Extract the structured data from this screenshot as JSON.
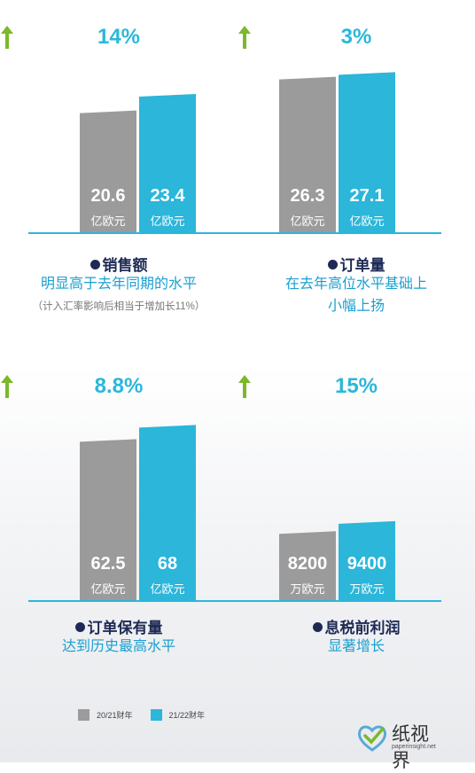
{
  "chart_data": [
    {
      "type": "bar",
      "categories": [
        "20/21财年",
        "21/22财年"
      ],
      "values": [
        20.6,
        23.4
      ],
      "value_labels": [
        "20.6",
        "23.4"
      ],
      "unit": "亿欧元",
      "growth": "14%",
      "metric": "销售额",
      "description": [
        "明显高于去年同期的水平"
      ],
      "note": "（计入汇率影响后相当于增加长11%）",
      "ylim": [
        0,
        30
      ]
    },
    {
      "type": "bar",
      "categories": [
        "20/21财年",
        "21/22财年"
      ],
      "values": [
        26.3,
        27.1
      ],
      "value_labels": [
        "26.3",
        "27.1"
      ],
      "unit": "亿欧元",
      "growth": "3%",
      "metric": "订单量",
      "description": [
        "在去年高位水平基础上",
        "小幅上扬"
      ],
      "ylim": [
        0,
        30
      ]
    },
    {
      "type": "bar",
      "categories": [
        "20/21财年",
        "21/22财年"
      ],
      "values": [
        62.5,
        68
      ],
      "value_labels": [
        "62.5",
        "68"
      ],
      "unit": "亿欧元",
      "growth": "8.8%",
      "metric": "订单保有量",
      "description": [
        "达到历史最高水平"
      ],
      "ylim": [
        0,
        75
      ]
    },
    {
      "type": "bar",
      "categories": [
        "20/21财年",
        "21/22财年"
      ],
      "values": [
        8200,
        9400
      ],
      "value_labels": [
        "8200",
        "9400"
      ],
      "unit": "万欧元",
      "growth": "15%",
      "metric": "息税前利润",
      "description": [
        "显著增长"
      ],
      "ylim": [
        0,
        23000
      ]
    }
  ],
  "legend": [
    {
      "label": "20/21财年",
      "color": "#9b9b9b"
    },
    {
      "label": "21/22财年",
      "color": "#2bb6da"
    }
  ],
  "colors": {
    "bar_prev": "#9b9b9b",
    "bar_curr": "#2bb6da",
    "axis": "#2bb6da",
    "arrow": "#7ab929"
  },
  "watermark": {
    "name": "纸视界",
    "url": "paperinsight.net"
  }
}
